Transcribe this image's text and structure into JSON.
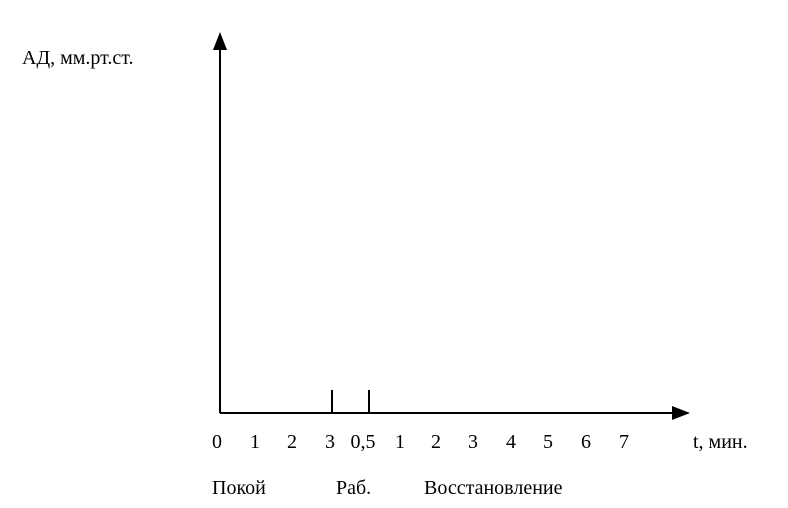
{
  "y_axis": {
    "label": "АД, мм.рт.ст."
  },
  "x_axis": {
    "label": "t, мин.",
    "ticks": [
      "0",
      "1",
      "2",
      "3",
      "0,5",
      "1",
      "2",
      "3",
      "4",
      "5",
      "6",
      "7"
    ]
  },
  "phases": [
    "Покой",
    "Раб.",
    "Восстановление"
  ]
}
